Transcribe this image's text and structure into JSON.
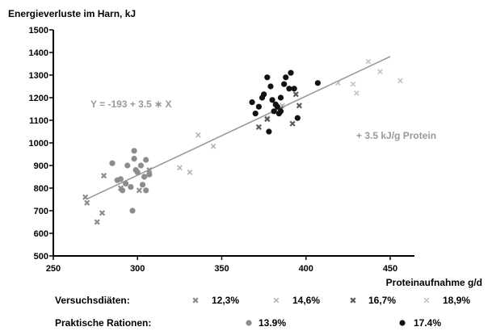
{
  "chart_data": {
    "type": "scatter",
    "title": "",
    "ylabel": "Energieverluste im Harn, kJ",
    "xlabel": "Proteinaufnahme g/d",
    "xlim": [
      250,
      450
    ],
    "ylim": [
      500,
      1500
    ],
    "xticks": [
      250,
      300,
      350,
      400,
      450
    ],
    "yticks": [
      500,
      600,
      700,
      800,
      900,
      1000,
      1100,
      1200,
      1300,
      1400,
      1500
    ],
    "grid": false,
    "legend_position": "bottom",
    "regression": {
      "label": "Y = -193 + 3.5 ∗ X",
      "x": [
        270,
        450
      ],
      "y": [
        752,
        1382
      ],
      "color": "#999999"
    },
    "annotation": "+ 3.5 kJ/g Protein",
    "legend_groups": [
      {
        "label": "Versuchsdiäten:",
        "entries": [
          "s123",
          "s146",
          "s167",
          "s189"
        ]
      },
      {
        "label": "Praktische Rationen:",
        "entries": [
          "p139",
          "p174"
        ]
      }
    ],
    "series": [
      {
        "id": "s123",
        "name": "12,3%",
        "marker": "x-thick",
        "color": "#8c8c8c",
        "points": [
          [
            269,
            760
          ],
          [
            270,
            735
          ],
          [
            276,
            650
          ],
          [
            279,
            690
          ],
          [
            280,
            855
          ],
          [
            290,
            800
          ],
          [
            301,
            790
          ],
          [
            307,
            880
          ]
        ]
      },
      {
        "id": "s146",
        "name": "14,6%",
        "marker": "x-thin",
        "color": "#b4b4b4",
        "points": [
          [
            325,
            890
          ],
          [
            331,
            870
          ],
          [
            336,
            1035
          ],
          [
            345,
            985
          ],
          [
            377,
            1110
          ],
          [
            386,
            1165
          ]
        ]
      },
      {
        "id": "s167",
        "name": "16,7%",
        "marker": "x-thick",
        "color": "#5a5a5a",
        "points": [
          [
            372,
            1070
          ],
          [
            377,
            1105
          ],
          [
            385,
            1150
          ],
          [
            392,
            1085
          ],
          [
            394,
            1215
          ],
          [
            396,
            1165
          ]
        ]
      },
      {
        "id": "s189",
        "name": "18,9%",
        "marker": "x-thin",
        "color": "#c4c4c4",
        "points": [
          [
            419,
            1265
          ],
          [
            428,
            1260
          ],
          [
            430,
            1220
          ],
          [
            437,
            1360
          ],
          [
            444,
            1315
          ],
          [
            456,
            1275
          ]
        ]
      },
      {
        "id": "p139",
        "name": "13.9%",
        "marker": "dot",
        "color": "#8c8c8c",
        "points": [
          [
            285,
            910
          ],
          [
            288,
            835
          ],
          [
            290,
            840
          ],
          [
            291,
            790
          ],
          [
            293,
            820
          ],
          [
            294,
            900
          ],
          [
            296,
            805
          ],
          [
            297,
            700
          ],
          [
            298,
            930
          ],
          [
            298,
            965
          ],
          [
            299,
            880
          ],
          [
            300,
            870
          ],
          [
            302,
            900
          ],
          [
            303,
            815
          ],
          [
            304,
            850
          ],
          [
            305,
            790
          ],
          [
            305,
            925
          ],
          [
            307,
            860
          ]
        ]
      },
      {
        "id": "p174",
        "name": "17.4%",
        "marker": "dot",
        "color": "#111111",
        "points": [
          [
            368,
            1180
          ],
          [
            370,
            1130
          ],
          [
            372,
            1160
          ],
          [
            374,
            1200
          ],
          [
            375,
            1215
          ],
          [
            377,
            1290
          ],
          [
            378,
            1050
          ],
          [
            379,
            1250
          ],
          [
            380,
            1190
          ],
          [
            381,
            1140
          ],
          [
            382,
            1170
          ],
          [
            383,
            1160
          ],
          [
            384,
            1130
          ],
          [
            385,
            1140
          ],
          [
            385,
            1200
          ],
          [
            387,
            1260
          ],
          [
            388,
            1290
          ],
          [
            390,
            1240
          ],
          [
            391,
            1310
          ],
          [
            393,
            1240
          ],
          [
            395,
            1110
          ],
          [
            407,
            1265
          ]
        ]
      }
    ]
  }
}
